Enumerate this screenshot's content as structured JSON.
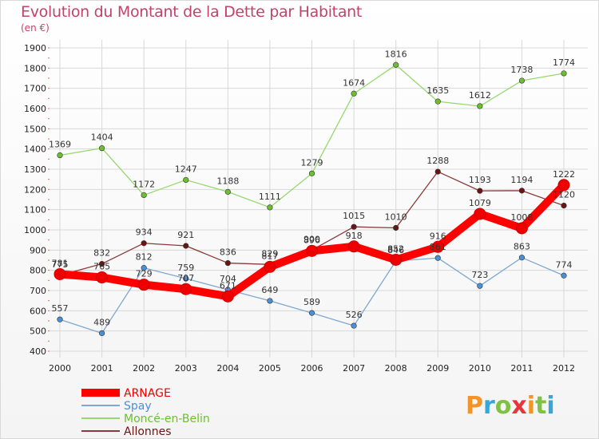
{
  "header": {
    "title": "Evolution du Montant de la Dette par Habitant",
    "unit": "(en €)"
  },
  "logo": {
    "text": "Proxiti",
    "letters": [
      "P",
      "r",
      "o",
      "x",
      "i",
      "t",
      "i"
    ],
    "letter_colors": [
      "#f1942a",
      "#3aa6d8",
      "#7dc242",
      "#e8343c",
      "#f1942a",
      "#7dc242",
      "#3aa6d8"
    ]
  },
  "colors": {
    "title": "#c2426a",
    "grid": "#d8d8d8",
    "tick_marks": "#e26a6a"
  },
  "chart_data": {
    "type": "line",
    "title": "Evolution du Montant de la Dette par Habitant",
    "subtitle": "(en €)",
    "xlabel": "",
    "ylabel": "",
    "x": [
      "2000",
      "2001",
      "2002",
      "2003",
      "2004",
      "2005",
      "2006",
      "2007",
      "2008",
      "2009",
      "2010",
      "2011",
      "2012"
    ],
    "ylim": [
      400,
      1900
    ],
    "yticks": [
      400,
      500,
      600,
      700,
      800,
      900,
      1000,
      1100,
      1200,
      1300,
      1400,
      1500,
      1600,
      1700,
      1800,
      1900
    ],
    "grid": true,
    "legend_position": "bottom-left",
    "series": [
      {
        "name": "ARNAGE",
        "color": "#ee0000",
        "line_color": "#ff0000",
        "thick": true,
        "values": [
          781,
          765,
          729,
          707,
          671,
          817,
          896,
          918,
          852,
          916,
          1079,
          1008,
          1222
        ],
        "labels": [
          "781",
          "765",
          "729",
          "707",
          "671",
          "817",
          "896",
          "918",
          "852",
          "916",
          "1079",
          "1008",
          "1222"
        ]
      },
      {
        "name": "Spay",
        "color": "#4a90d9",
        "line_color": "#7fa8d0",
        "thick": false,
        "values": [
          557,
          489,
          812,
          759,
          704,
          649,
          589,
          526,
          846,
          861,
          723,
          863,
          774
        ],
        "labels": [
          "557",
          "489",
          "812",
          "759",
          "704",
          "649",
          "589",
          "526",
          "846",
          "861",
          "723",
          "863",
          "774"
        ]
      },
      {
        "name": "Moncé-en-Belin",
        "color": "#6cc030",
        "line_color": "#96d870",
        "thick": false,
        "values": [
          1369,
          1404,
          1172,
          1247,
          1188,
          1111,
          1279,
          1674,
          1816,
          1635,
          1612,
          1738,
          1774
        ],
        "labels": [
          "1369",
          "1404",
          "1172",
          "1247",
          "1188",
          "1111",
          "1279",
          "1674",
          "1816",
          "1635",
          "1612",
          "1738",
          "1774"
        ]
      },
      {
        "name": "Allonnes",
        "color": "#6b1414",
        "line_color": "#8a3a3a",
        "thick": false,
        "values": [
          775,
          832,
          934,
          921,
          836,
          829,
          900,
          1015,
          1010,
          1288,
          1193,
          1194,
          1120
        ],
        "labels": [
          "775",
          "832",
          "934",
          "921",
          "836",
          "829",
          "900",
          "1015",
          "1010",
          "1288",
          "1193",
          "1194",
          "1120"
        ]
      }
    ]
  }
}
